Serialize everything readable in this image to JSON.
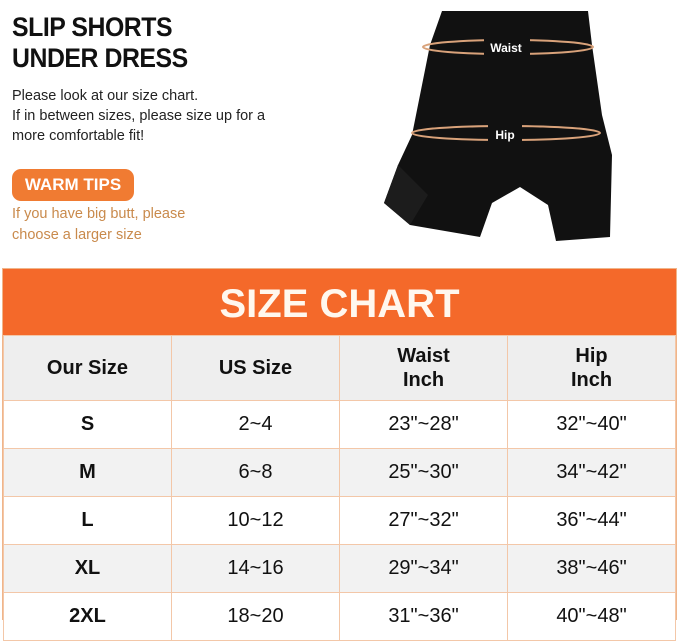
{
  "heading": {
    "line1": "SLIP SHORTS",
    "line2": "UNDER DRESS"
  },
  "description": {
    "line1": "Please look at our size chart.",
    "line2": "If in between sizes, please size up for a",
    "line3": "more comfortable fit!"
  },
  "warm_tips": {
    "badge": "WARM TIPS",
    "line1": "If you have big butt, please",
    "line2": "choose a larger size"
  },
  "product_image": {
    "waist_label": "Waist",
    "hip_label": "Hip"
  },
  "size_chart": {
    "title": "SIZE CHART",
    "headers": [
      [
        "Our Size",
        ""
      ],
      [
        "US Size",
        ""
      ],
      [
        "Waist",
        "Inch"
      ],
      [
        "Hip",
        "Inch"
      ]
    ],
    "rows": [
      [
        "S",
        "2~4",
        "23\"~28\"",
        "32\"~40\""
      ],
      [
        "M",
        "6~8",
        "25\"~30\"",
        "34\"~42\""
      ],
      [
        "L",
        "10~12",
        "27\"~32\"",
        "36\"~44\""
      ],
      [
        "XL",
        "14~16",
        "29\"~34\"",
        "38\"~46\""
      ],
      [
        "2XL",
        "18~20",
        "31\"~36\"",
        "40\"~48\""
      ]
    ]
  },
  "colors": {
    "accent": "#f4692a",
    "badge": "#f07b32",
    "tips_text": "#c98a4c"
  }
}
